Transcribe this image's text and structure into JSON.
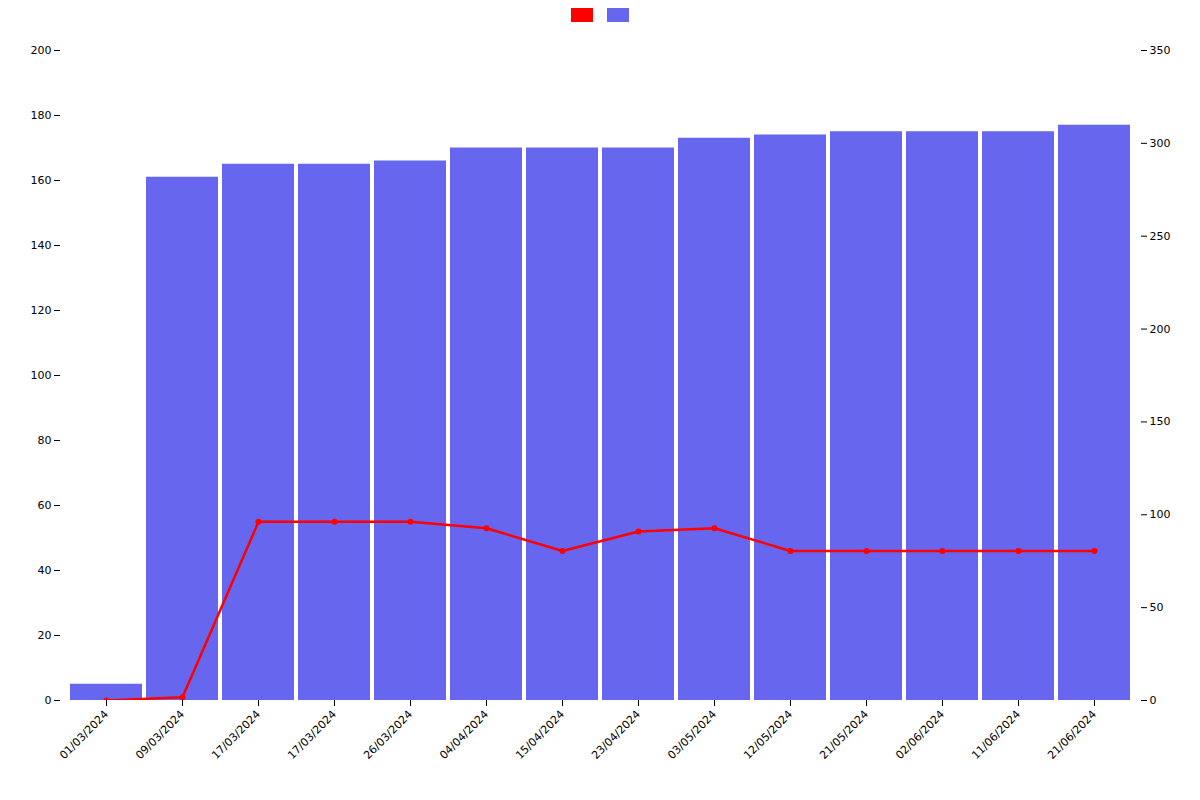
{
  "chart_data": {
    "type": "bar",
    "categories": [
      "01/03/2024",
      "09/03/2024",
      "17/03/2024",
      "17/03/2024",
      "26/03/2024",
      "04/04/2024",
      "15/04/2024",
      "23/04/2024",
      "03/05/2024",
      "12/05/2024",
      "21/05/2024",
      "02/06/2024",
      "11/06/2024",
      "21/06/2024"
    ],
    "series": [
      {
        "type": "line",
        "color": "#ff0000",
        "marker": "circle",
        "values": [
          0,
          1,
          55,
          55,
          55,
          53,
          46,
          52,
          53,
          46,
          46,
          46,
          46,
          46
        ]
      },
      {
        "type": "bar",
        "color": "#6666ee",
        "values": [
          5,
          161,
          165,
          165,
          166,
          170,
          170,
          170,
          173,
          174,
          175,
          175,
          175,
          177
        ]
      }
    ],
    "ylim": [
      0,
      200
    ],
    "yticks": [
      0,
      20,
      40,
      60,
      80,
      100,
      120,
      140,
      160,
      180,
      200
    ],
    "y2lim": [
      0,
      350
    ],
    "y2ticks": [
      0,
      50,
      100,
      150,
      200,
      250,
      300,
      350
    ],
    "legend": "top",
    "grid": false
  }
}
